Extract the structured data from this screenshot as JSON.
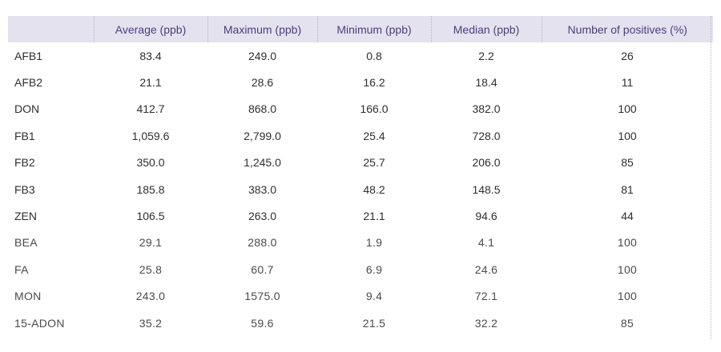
{
  "table": {
    "headers": [
      "",
      "Average (ppb)",
      "Maximum (ppb)",
      "Minimum (ppb)",
      "Median (ppb)",
      "Number of positives (%)"
    ],
    "rows": [
      {
        "label": "AFB1",
        "average": "83.4",
        "maximum": "249.0",
        "minimum": "0.8",
        "median": "2.2",
        "positives": "26"
      },
      {
        "label": "AFB2",
        "average": "21.1",
        "maximum": "28.6",
        "minimum": "16.2",
        "median": "18.4",
        "positives": "11"
      },
      {
        "label": "DON",
        "average": "412.7",
        "maximum": "868.0",
        "minimum": "166.0",
        "median": "382.0",
        "positives": "100"
      },
      {
        "label": "FB1",
        "average": "1,059.6",
        "maximum": "2,799.0",
        "minimum": "25.4",
        "median": "728.0",
        "positives": "100"
      },
      {
        "label": "FB2",
        "average": "350.0",
        "maximum": "1,245.0",
        "minimum": "25.7",
        "median": "206.0",
        "positives": "85"
      },
      {
        "label": "FB3",
        "average": "185.8",
        "maximum": "383.0",
        "minimum": "48.2",
        "median": "148.5",
        "positives": "81"
      },
      {
        "label": "ZEN",
        "average": "106.5",
        "maximum": "263.0",
        "minimum": "21.1",
        "median": "94.6",
        "positives": "44"
      },
      {
        "label": "BEA",
        "average": "29.1",
        "maximum": "288.0",
        "minimum": "1.9",
        "median": "4.1",
        "positives": "100"
      },
      {
        "label": "FA",
        "average": "25.8",
        "maximum": "60.7",
        "minimum": "6.9",
        "median": "24.6",
        "positives": "100"
      },
      {
        "label": "MON",
        "average": "243.0",
        "maximum": "1575.0",
        "minimum": "9.4",
        "median": "72.1",
        "positives": "100"
      },
      {
        "label": "15-ADON",
        "average": "35.2",
        "maximum": "59.6",
        "minimum": "21.5",
        "median": "32.2",
        "positives": "85"
      }
    ]
  },
  "colors": {
    "header_bg": "#e4e2ee",
    "header_text": "#4e3d7e",
    "divider": "#b9b3cf",
    "body_text": "#2f2f2f"
  }
}
